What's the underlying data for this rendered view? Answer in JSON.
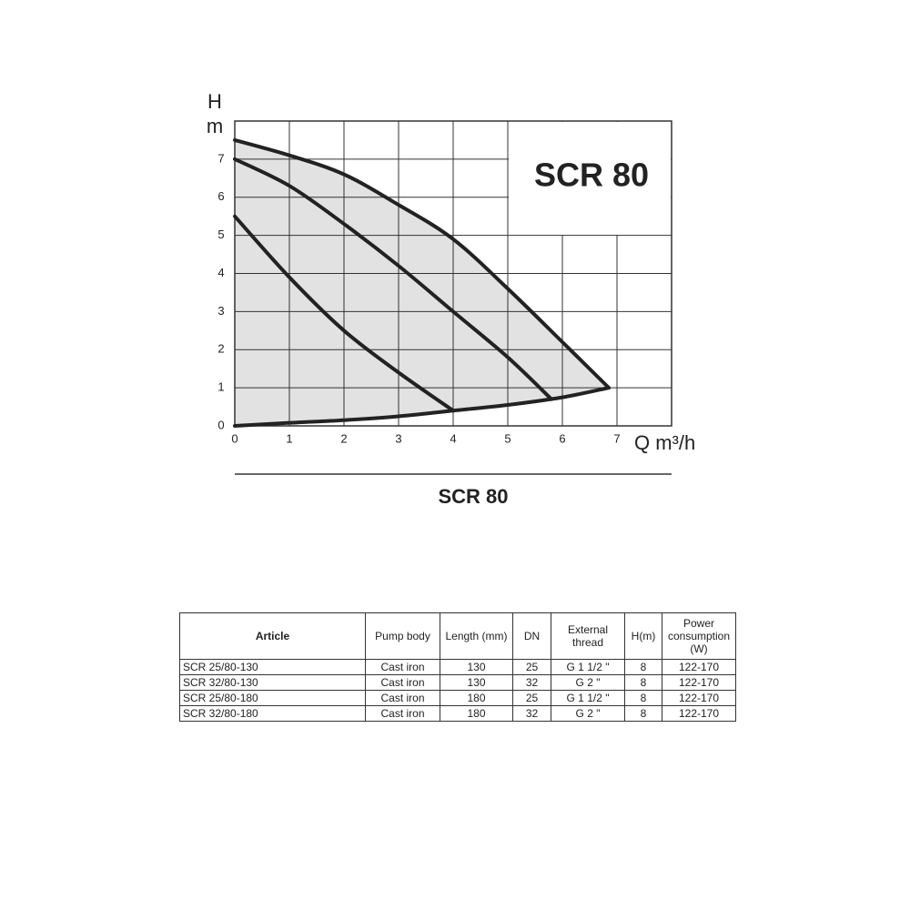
{
  "chart_data": {
    "type": "line",
    "title": "SCR 80",
    "caption": "SCR 80",
    "ylabel": "H",
    "yunit": "m",
    "xlabel": "Q m³/h",
    "xlim": [
      0,
      8
    ],
    "ylim": [
      0,
      8
    ],
    "xticks": [
      0,
      1,
      2,
      3,
      4,
      5,
      6,
      7
    ],
    "yticks": [
      0,
      1,
      2,
      3,
      4,
      5,
      6,
      7
    ],
    "grid": true,
    "fill_color": "#e2e2e2",
    "series": [
      {
        "color": "#222222",
        "x": [
          0,
          1,
          2,
          3,
          4,
          5,
          6,
          6.85
        ],
        "values": [
          7.5,
          7.1,
          6.6,
          5.8,
          4.9,
          3.6,
          2.2,
          1.0
        ]
      },
      {
        "color": "#222222",
        "x": [
          0,
          1,
          2,
          3,
          4,
          5,
          5.8
        ],
        "values": [
          7.0,
          6.3,
          5.3,
          4.2,
          3.0,
          1.8,
          0.7
        ]
      },
      {
        "color": "#222222",
        "x": [
          0,
          1,
          2,
          3,
          4
        ],
        "values": [
          5.5,
          3.9,
          2.5,
          1.4,
          0.4
        ]
      },
      {
        "color": "#222222",
        "x": [
          0,
          1,
          2,
          3,
          4,
          5,
          6,
          6.85
        ],
        "values": [
          0,
          0.08,
          0.15,
          0.25,
          0.4,
          0.55,
          0.75,
          1.0
        ]
      }
    ]
  },
  "table": {
    "header": [
      "Article",
      "Pump body",
      "Length (mm)",
      "DN",
      "External thread",
      "H(m)",
      "Power consumption (W)"
    ],
    "rows": [
      [
        "SCR 25/80-130",
        "Cast iron",
        "130",
        "25",
        "G 1 1/2 \"",
        "8",
        "122-170"
      ],
      [
        "SCR 32/80-130",
        "Cast iron",
        "130",
        "32",
        "G 2 \"",
        "8",
        "122-170"
      ],
      [
        "SCR 25/80-180",
        "Cast iron",
        "180",
        "25",
        "G 1 1/2 \"",
        "8",
        "122-170"
      ],
      [
        "SCR 32/80-180",
        "Cast iron",
        "180",
        "32",
        "G 2 \"",
        "8",
        "122-170"
      ]
    ]
  }
}
